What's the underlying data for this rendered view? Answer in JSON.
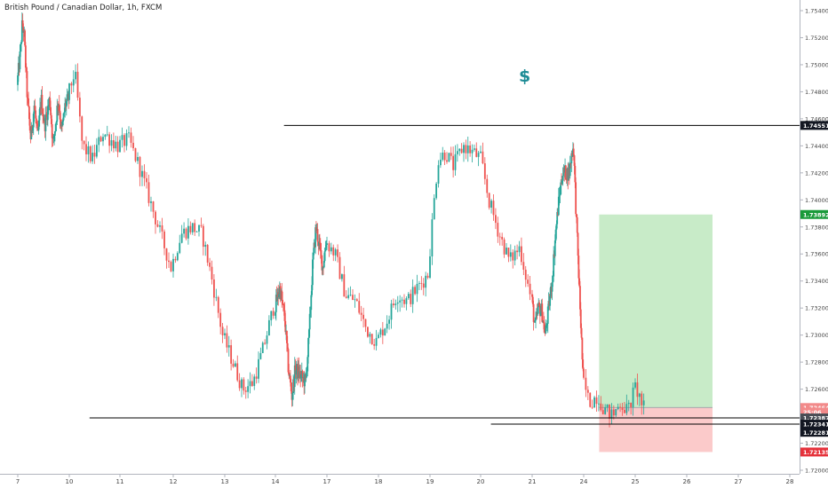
{
  "chart_title": "British Pound / Canadian Dollar, 1h, FXCM",
  "annotation": "$",
  "colors": {
    "up": "#26a69a",
    "down": "#ef5350",
    "grid_axis": "#b2b5be",
    "target_zone": "#c8ebc8",
    "stop_zone": "#fbcaca",
    "line": "#000000",
    "label_black": "#131722",
    "label_green": "#1a9a3a",
    "label_red": "#e5323b",
    "label_pink": "#f28a8a",
    "label_gray": "#4a4d55"
  },
  "chart_data": {
    "type": "candlestick",
    "title": "British Pound / Canadian Dollar, 1h, FXCM",
    "xlabel": "",
    "ylabel": "",
    "xlim": [
      7,
      28
    ],
    "ylim": [
      1.72,
      1.755
    ],
    "x_ticks": [
      "7",
      "10",
      "11",
      "12",
      "13",
      "14",
      "17",
      "18",
      "19",
      "20",
      "21",
      "24",
      "25",
      "26",
      "27",
      "28"
    ],
    "y_ticks": [
      "1.75400",
      "1.75200",
      "1.75000",
      "1.74800",
      "1.74600",
      "1.74400",
      "1.74200",
      "1.74000",
      "1.73800",
      "1.73600",
      "1.73400",
      "1.73200",
      "1.73000",
      "1.72800",
      "1.72600",
      "1.72400",
      "1.72200",
      "1.72000"
    ],
    "y_labels": [
      {
        "text": "1.74551",
        "value": 1.74551,
        "style": "black"
      },
      {
        "text": "1.73892",
        "value": 1.73892,
        "style": "green"
      },
      {
        "text": "1.72464",
        "value": 1.72464,
        "style": "pink"
      },
      {
        "text": "25:06",
        "value": 1.7243,
        "style": "pink"
      },
      {
        "text": "1.72387",
        "value": 1.72387,
        "style": "gray"
      },
      {
        "text": "1.72341",
        "value": 1.72341,
        "style": "black"
      },
      {
        "text": "1.72281",
        "value": 1.72281,
        "style": "black"
      },
      {
        "text": "1.72135",
        "value": 1.72135,
        "style": "red"
      }
    ],
    "horizontal_lines": [
      {
        "y": 1.74551,
        "x_from": 14.5,
        "x_to": 28.3
      },
      {
        "y": 1.72387,
        "x_from": 10.4,
        "x_to": 28.3
      },
      {
        "y": 1.72341,
        "x_from": 20.2,
        "x_to": 28.3
      }
    ],
    "position": {
      "x_from": 24.3,
      "x_to": 26.5,
      "entry": 1.72464,
      "target": 1.73892,
      "stop": 1.72135
    },
    "price_path": [
      [
        7.0,
        1.7485
      ],
      [
        7.2,
        1.751
      ],
      [
        7.3,
        1.753
      ],
      [
        7.4,
        1.7525
      ],
      [
        7.6,
        1.7475
      ],
      [
        7.8,
        1.7445
      ],
      [
        8.0,
        1.747
      ],
      [
        8.2,
        1.7445
      ],
      [
        8.4,
        1.7475
      ],
      [
        8.6,
        1.7455
      ],
      [
        8.9,
        1.7475
      ],
      [
        9.1,
        1.744
      ],
      [
        9.4,
        1.7475
      ],
      [
        9.6,
        1.745
      ],
      [
        9.8,
        1.747
      ],
      [
        10.0,
        1.7475
      ],
      [
        10.15,
        1.7495
      ],
      [
        10.3,
        1.744
      ],
      [
        10.5,
        1.743
      ],
      [
        10.7,
        1.745
      ],
      [
        11.0,
        1.744
      ],
      [
        11.2,
        1.7445
      ],
      [
        11.4,
        1.7425
      ],
      [
        11.6,
        1.74
      ],
      [
        11.8,
        1.7375
      ],
      [
        12.0,
        1.735
      ],
      [
        12.2,
        1.7375
      ],
      [
        12.4,
        1.738
      ],
      [
        12.6,
        1.7375
      ],
      [
        12.8,
        1.734
      ],
      [
        13.0,
        1.73
      ],
      [
        13.2,
        1.728
      ],
      [
        13.4,
        1.726
      ],
      [
        13.6,
        1.7265
      ],
      [
        13.8,
        1.729
      ],
      [
        14.0,
        1.732
      ],
      [
        14.3,
        1.7335
      ],
      [
        14.6,
        1.731
      ],
      [
        14.8,
        1.7275
      ],
      [
        15.0,
        1.7255
      ],
      [
        15.2,
        1.7275
      ],
      [
        15.5,
        1.727
      ],
      [
        15.8,
        1.7265
      ],
      [
        16.0,
        1.73
      ],
      [
        16.2,
        1.735
      ],
      [
        16.4,
        1.738
      ],
      [
        16.6,
        1.7365
      ],
      [
        16.8,
        1.735
      ],
      [
        17.0,
        1.737
      ],
      [
        17.2,
        1.736
      ],
      [
        17.4,
        1.733
      ],
      [
        17.6,
        1.7325
      ],
      [
        17.8,
        1.7305
      ],
      [
        18.0,
        1.7295
      ],
      [
        18.2,
        1.731
      ],
      [
        18.4,
        1.733
      ],
      [
        18.6,
        1.7325
      ],
      [
        18.8,
        1.7335
      ],
      [
        19.0,
        1.7345
      ],
      [
        19.1,
        1.739
      ],
      [
        19.2,
        1.743
      ],
      [
        19.35,
        1.7435
      ],
      [
        19.5,
        1.7425
      ],
      [
        19.7,
        1.744
      ],
      [
        19.9,
        1.7435
      ],
      [
        20.05,
        1.743
      ],
      [
        20.2,
        1.74
      ],
      [
        20.4,
        1.7375
      ],
      [
        20.6,
        1.7355
      ],
      [
        20.8,
        1.7365
      ],
      [
        21.0,
        1.733
      ],
      [
        21.2,
        1.7305
      ],
      [
        21.4,
        1.732
      ],
      [
        21.6,
        1.7318
      ],
      [
        21.8,
        1.73
      ],
      [
        22.0,
        1.732
      ],
      [
        22.2,
        1.734
      ],
      [
        22.4,
        1.7375
      ],
      [
        22.6,
        1.74
      ],
      [
        22.8,
        1.742
      ],
      [
        23.0,
        1.742
      ],
      [
        23.2,
        1.742
      ],
      [
        23.35,
        1.7435
      ],
      [
        23.45,
        1.744
      ],
      [
        23.6,
        1.739
      ],
      [
        23.75,
        1.7345
      ],
      [
        23.9,
        1.73
      ],
      [
        24.0,
        1.727
      ],
      [
        24.15,
        1.725
      ],
      [
        24.3,
        1.7255
      ],
      [
        24.45,
        1.7245
      ],
      [
        24.6,
        1.724
      ],
      [
        24.75,
        1.725
      ],
      [
        24.9,
        1.7244
      ],
      [
        25.05,
        1.7262
      ],
      [
        25.2,
        1.7246
      ]
    ]
  }
}
